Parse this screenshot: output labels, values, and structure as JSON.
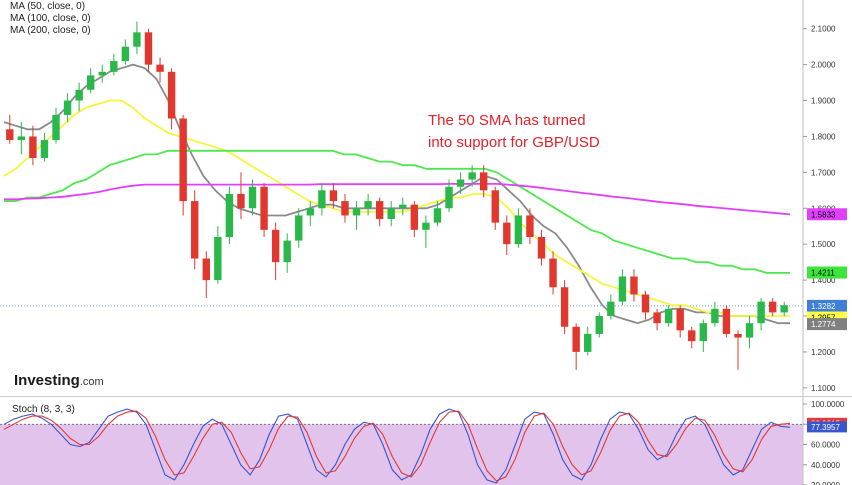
{
  "legend": {
    "items": [
      "MA (50, close, 0)",
      "MA (100, close, 0)",
      "MA (200, close, 0)"
    ]
  },
  "annotation": {
    "line1": "The 50 SMA has turned",
    "line2": "into support for GBP/USD"
  },
  "brand": {
    "name": "Investing",
    "domain": ".com"
  },
  "stoch_label": "Stoch (8, 3, 3)",
  "chart_data": [
    {
      "type": "line",
      "title": "",
      "price_range": [
        1.08,
        2.18
      ],
      "y_ticks": [
        "2.1000",
        "2.0000",
        "1.9000",
        "1.8000",
        "1.7000",
        "1.6000",
        "1.5000",
        "1.4000",
        "1.3000",
        "1.2000",
        "1.1000"
      ],
      "y_tick_values": [
        2.1,
        2.0,
        1.9,
        1.8,
        1.7,
        1.6,
        1.5,
        1.4,
        1.3,
        1.2,
        1.1
      ],
      "current_price_line": 1.3282,
      "badges": [
        {
          "value": 1.5833,
          "label": "1.5833",
          "color": "#e040fb"
        },
        {
          "value": 1.4211,
          "label": "1.4211",
          "color": "#39e639"
        },
        {
          "value": 1.3282,
          "label": "1.3282",
          "color": "#3f7fd6"
        },
        {
          "value": 1.2957,
          "label": "1.2957",
          "color": "#ffff44"
        },
        {
          "value": 1.2774,
          "label": "1.2774",
          "color": "#808080"
        }
      ],
      "series": [
        {
          "name": "MA (50, close, 0)",
          "color": "#8a8a8a",
          "values": [
            1.84,
            1.83,
            1.82,
            1.82,
            1.84,
            1.87,
            1.91,
            1.94,
            1.96,
            1.98,
            1.99,
            2.0,
            1.99,
            1.96,
            1.9,
            1.82,
            1.75,
            1.69,
            1.65,
            1.62,
            1.6,
            1.59,
            1.58,
            1.58,
            1.58,
            1.59,
            1.6,
            1.61,
            1.61,
            1.6,
            1.6,
            1.6,
            1.6,
            1.6,
            1.6,
            1.6,
            1.6,
            1.61,
            1.63,
            1.65,
            1.67,
            1.69,
            1.68,
            1.65,
            1.62,
            1.58,
            1.55,
            1.53,
            1.49,
            1.44,
            1.38,
            1.33,
            1.3,
            1.29,
            1.28,
            1.29,
            1.31,
            1.32,
            1.32,
            1.31,
            1.31,
            1.3,
            1.3,
            1.3,
            1.3,
            1.29,
            1.28,
            1.28
          ]
        },
        {
          "name": "MA (100, close, 0)",
          "color": "#f5f53c",
          "values": [
            1.69,
            1.71,
            1.74,
            1.77,
            1.8,
            1.83,
            1.86,
            1.88,
            1.89,
            1.9,
            1.9,
            1.88,
            1.85,
            1.83,
            1.81,
            1.8,
            1.79,
            1.78,
            1.77,
            1.76,
            1.74,
            1.72,
            1.7,
            1.68,
            1.66,
            1.64,
            1.62,
            1.61,
            1.6,
            1.59,
            1.59,
            1.59,
            1.59,
            1.59,
            1.59,
            1.6,
            1.61,
            1.62,
            1.63,
            1.63,
            1.64,
            1.64,
            1.63,
            1.6,
            1.56,
            1.53,
            1.5,
            1.47,
            1.45,
            1.43,
            1.41,
            1.39,
            1.38,
            1.37,
            1.36,
            1.35,
            1.34,
            1.33,
            1.33,
            1.32,
            1.31,
            1.31,
            1.3,
            1.3,
            1.3,
            1.3,
            1.3,
            1.3
          ]
        },
        {
          "name": "MA (200, close, 0)",
          "color": "#4de84d",
          "values": [
            1.62,
            1.62,
            1.63,
            1.63,
            1.64,
            1.65,
            1.67,
            1.68,
            1.7,
            1.72,
            1.73,
            1.74,
            1.75,
            1.75,
            1.76,
            1.76,
            1.76,
            1.76,
            1.76,
            1.76,
            1.76,
            1.76,
            1.76,
            1.76,
            1.76,
            1.76,
            1.76,
            1.76,
            1.76,
            1.75,
            1.75,
            1.74,
            1.73,
            1.73,
            1.72,
            1.72,
            1.71,
            1.71,
            1.71,
            1.71,
            1.71,
            1.71,
            1.7,
            1.68,
            1.66,
            1.64,
            1.62,
            1.6,
            1.58,
            1.56,
            1.54,
            1.53,
            1.51,
            1.5,
            1.49,
            1.48,
            1.47,
            1.46,
            1.46,
            1.45,
            1.45,
            1.44,
            1.44,
            1.43,
            1.43,
            1.42,
            1.42,
            1.42
          ]
        },
        {
          "name": "",
          "color": "#e040fb",
          "values": [
            1.625,
            1.625,
            1.627,
            1.628,
            1.63,
            1.632,
            1.636,
            1.64,
            1.645,
            1.652,
            1.658,
            1.663,
            1.666,
            1.666,
            1.666,
            1.666,
            1.666,
            1.666,
            1.666,
            1.666,
            1.666,
            1.666,
            1.666,
            1.666,
            1.666,
            1.666,
            1.666,
            1.667,
            1.667,
            1.667,
            1.667,
            1.667,
            1.667,
            1.667,
            1.667,
            1.667,
            1.667,
            1.667,
            1.668,
            1.668,
            1.668,
            1.668,
            1.668,
            1.666,
            1.663,
            1.66,
            1.656,
            1.652,
            1.648,
            1.644,
            1.64,
            1.636,
            1.632,
            1.629,
            1.625,
            1.621,
            1.617,
            1.614,
            1.611,
            1.607,
            1.604,
            1.601,
            1.598,
            1.595,
            1.592,
            1.589,
            1.586,
            1.583
          ]
        }
      ],
      "candles": [
        {
          "o": 1.82,
          "h": 1.86,
          "l": 1.78,
          "c": 1.79
        },
        {
          "o": 1.79,
          "h": 1.84,
          "l": 1.75,
          "c": 1.8
        },
        {
          "o": 1.8,
          "h": 1.83,
          "l": 1.72,
          "c": 1.74
        },
        {
          "o": 1.74,
          "h": 1.81,
          "l": 1.73,
          "c": 1.79
        },
        {
          "o": 1.79,
          "h": 1.88,
          "l": 1.78,
          "c": 1.86
        },
        {
          "o": 1.86,
          "h": 1.92,
          "l": 1.84,
          "c": 1.9
        },
        {
          "o": 1.9,
          "h": 1.95,
          "l": 1.87,
          "c": 1.93
        },
        {
          "o": 1.93,
          "h": 1.99,
          "l": 1.92,
          "c": 1.97
        },
        {
          "o": 1.97,
          "h": 2.0,
          "l": 1.95,
          "c": 1.98
        },
        {
          "o": 1.98,
          "h": 2.03,
          "l": 1.97,
          "c": 2.01
        },
        {
          "o": 2.01,
          "h": 2.07,
          "l": 2.0,
          "c": 2.05
        },
        {
          "o": 2.05,
          "h": 2.12,
          "l": 2.03,
          "c": 2.09
        },
        {
          "o": 2.09,
          "h": 2.1,
          "l": 1.98,
          "c": 2.0
        },
        {
          "o": 2.0,
          "h": 2.02,
          "l": 1.95,
          "c": 1.98
        },
        {
          "o": 1.98,
          "h": 1.99,
          "l": 1.82,
          "c": 1.85
        },
        {
          "o": 1.85,
          "h": 1.86,
          "l": 1.58,
          "c": 1.62
        },
        {
          "o": 1.62,
          "h": 1.65,
          "l": 1.43,
          "c": 1.46
        },
        {
          "o": 1.46,
          "h": 1.48,
          "l": 1.35,
          "c": 1.4
        },
        {
          "o": 1.4,
          "h": 1.55,
          "l": 1.39,
          "c": 1.52
        },
        {
          "o": 1.52,
          "h": 1.66,
          "l": 1.5,
          "c": 1.64
        },
        {
          "o": 1.64,
          "h": 1.7,
          "l": 1.57,
          "c": 1.6
        },
        {
          "o": 1.6,
          "h": 1.68,
          "l": 1.58,
          "c": 1.66
        },
        {
          "o": 1.66,
          "h": 1.67,
          "l": 1.52,
          "c": 1.54
        },
        {
          "o": 1.54,
          "h": 1.56,
          "l": 1.4,
          "c": 1.45
        },
        {
          "o": 1.45,
          "h": 1.53,
          "l": 1.42,
          "c": 1.51
        },
        {
          "o": 1.51,
          "h": 1.6,
          "l": 1.49,
          "c": 1.58
        },
        {
          "o": 1.58,
          "h": 1.62,
          "l": 1.55,
          "c": 1.6
        },
        {
          "o": 1.6,
          "h": 1.67,
          "l": 1.58,
          "c": 1.65
        },
        {
          "o": 1.65,
          "h": 1.67,
          "l": 1.6,
          "c": 1.62
        },
        {
          "o": 1.62,
          "h": 1.64,
          "l": 1.56,
          "c": 1.58
        },
        {
          "o": 1.58,
          "h": 1.62,
          "l": 1.54,
          "c": 1.6
        },
        {
          "o": 1.6,
          "h": 1.64,
          "l": 1.58,
          "c": 1.62
        },
        {
          "o": 1.62,
          "h": 1.63,
          "l": 1.55,
          "c": 1.57
        },
        {
          "o": 1.57,
          "h": 1.62,
          "l": 1.55,
          "c": 1.6
        },
        {
          "o": 1.6,
          "h": 1.63,
          "l": 1.58,
          "c": 1.61
        },
        {
          "o": 1.61,
          "h": 1.62,
          "l": 1.52,
          "c": 1.54
        },
        {
          "o": 1.54,
          "h": 1.58,
          "l": 1.49,
          "c": 1.56
        },
        {
          "o": 1.56,
          "h": 1.62,
          "l": 1.55,
          "c": 1.6
        },
        {
          "o": 1.6,
          "h": 1.68,
          "l": 1.59,
          "c": 1.66
        },
        {
          "o": 1.66,
          "h": 1.7,
          "l": 1.64,
          "c": 1.68
        },
        {
          "o": 1.68,
          "h": 1.72,
          "l": 1.66,
          "c": 1.7
        },
        {
          "o": 1.7,
          "h": 1.72,
          "l": 1.63,
          "c": 1.65
        },
        {
          "o": 1.65,
          "h": 1.66,
          "l": 1.54,
          "c": 1.56
        },
        {
          "o": 1.56,
          "h": 1.58,
          "l": 1.47,
          "c": 1.5
        },
        {
          "o": 1.5,
          "h": 1.6,
          "l": 1.49,
          "c": 1.58
        },
        {
          "o": 1.58,
          "h": 1.6,
          "l": 1.5,
          "c": 1.52
        },
        {
          "o": 1.52,
          "h": 1.54,
          "l": 1.44,
          "c": 1.46
        },
        {
          "o": 1.46,
          "h": 1.48,
          "l": 1.36,
          "c": 1.38
        },
        {
          "o": 1.38,
          "h": 1.4,
          "l": 1.25,
          "c": 1.27
        },
        {
          "o": 1.27,
          "h": 1.28,
          "l": 1.15,
          "c": 1.2
        },
        {
          "o": 1.2,
          "h": 1.27,
          "l": 1.19,
          "c": 1.25
        },
        {
          "o": 1.25,
          "h": 1.31,
          "l": 1.24,
          "c": 1.3
        },
        {
          "o": 1.3,
          "h": 1.36,
          "l": 1.29,
          "c": 1.34
        },
        {
          "o": 1.34,
          "h": 1.43,
          "l": 1.33,
          "c": 1.41
        },
        {
          "o": 1.41,
          "h": 1.43,
          "l": 1.34,
          "c": 1.36
        },
        {
          "o": 1.36,
          "h": 1.37,
          "l": 1.29,
          "c": 1.31
        },
        {
          "o": 1.31,
          "h": 1.32,
          "l": 1.26,
          "c": 1.28
        },
        {
          "o": 1.28,
          "h": 1.33,
          "l": 1.27,
          "c": 1.32
        },
        {
          "o": 1.32,
          "h": 1.33,
          "l": 1.24,
          "c": 1.26
        },
        {
          "o": 1.26,
          "h": 1.27,
          "l": 1.21,
          "c": 1.23
        },
        {
          "o": 1.23,
          "h": 1.29,
          "l": 1.2,
          "c": 1.28
        },
        {
          "o": 1.28,
          "h": 1.34,
          "l": 1.27,
          "c": 1.32
        },
        {
          "o": 1.32,
          "h": 1.33,
          "l": 1.24,
          "c": 1.25
        },
        {
          "o": 1.25,
          "h": 1.26,
          "l": 1.15,
          "c": 1.24
        },
        {
          "o": 1.24,
          "h": 1.3,
          "l": 1.21,
          "c": 1.28
        },
        {
          "o": 1.28,
          "h": 1.35,
          "l": 1.26,
          "c": 1.34
        },
        {
          "o": 1.34,
          "h": 1.35,
          "l": 1.3,
          "c": 1.31
        },
        {
          "o": 1.31,
          "h": 1.34,
          "l": 1.3,
          "c": 1.33
        }
      ]
    },
    {
      "type": "line",
      "title": "Stoch (8, 3, 3)",
      "ylim": [
        20,
        100
      ],
      "y_ticks": [
        "100.0000",
        "80.0000",
        "60.0000",
        "40.0000",
        "20.0000"
      ],
      "y_tick_values": [
        100,
        80,
        60,
        40,
        20
      ],
      "overbought": 80,
      "oversold": 20,
      "badges": [
        {
          "value": 80.9215,
          "label": "80.9215",
          "color": "#e53935"
        },
        {
          "value": 77.3957,
          "label": "77.3957",
          "color": "#3a55d0"
        }
      ],
      "series": [
        {
          "name": "",
          "color": "#3a55d0",
          "values": [
            80,
            85,
            88,
            90,
            86,
            80,
            70,
            60,
            58,
            62,
            75,
            88,
            92,
            95,
            92,
            80,
            55,
            30,
            25,
            40,
            60,
            78,
            85,
            80,
            60,
            40,
            30,
            45,
            70,
            88,
            90,
            85,
            60,
            35,
            28,
            40,
            60,
            75,
            82,
            80,
            60,
            35,
            25,
            30,
            50,
            75,
            90,
            95,
            92,
            70,
            40,
            25,
            22,
            35,
            60,
            85,
            92,
            90,
            70,
            45,
            30,
            25,
            40,
            65,
            85,
            92,
            90,
            75,
            55,
            45,
            50,
            70,
            85,
            88,
            80,
            60,
            40,
            30,
            35,
            55,
            75,
            82,
            78,
            77
          ]
        },
        {
          "name": "",
          "color": "#e53935",
          "values": [
            75,
            80,
            85,
            88,
            88,
            84,
            76,
            66,
            60,
            60,
            68,
            80,
            88,
            92,
            93,
            86,
            68,
            45,
            30,
            32,
            48,
            66,
            80,
            82,
            72,
            52,
            36,
            38,
            55,
            76,
            88,
            87,
            72,
            48,
            32,
            34,
            48,
            66,
            78,
            81,
            70,
            48,
            32,
            28,
            40,
            62,
            82,
            92,
            93,
            80,
            56,
            34,
            24,
            28,
            46,
            72,
            88,
            91,
            80,
            58,
            40,
            30,
            34,
            52,
            74,
            88,
            91,
            82,
            64,
            50,
            48,
            60,
            76,
            86,
            84,
            70,
            50,
            36,
            33,
            45,
            65,
            78,
            80,
            80.9
          ]
        }
      ]
    }
  ]
}
